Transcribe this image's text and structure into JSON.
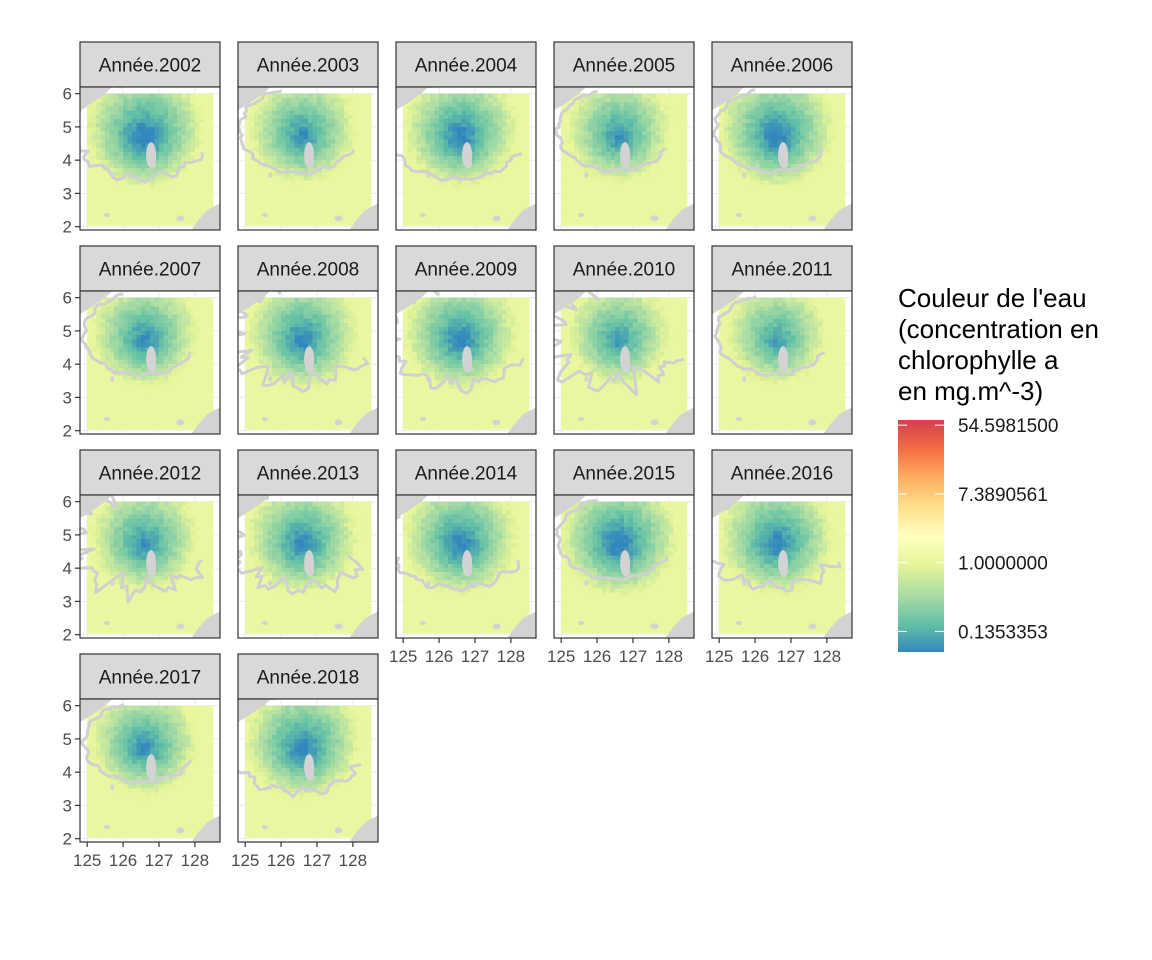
{
  "chart_data": {
    "type": "heatmap",
    "title": "",
    "xlabel": "",
    "ylabel": "",
    "xlim": [
      124.8,
      128.7
    ],
    "ylim": [
      1.9,
      6.2
    ],
    "x_ticks": [
      "125",
      "126",
      "127",
      "128"
    ],
    "x_tick_values": [
      125,
      126,
      127,
      128
    ],
    "y_ticks": [
      "2",
      "3",
      "4",
      "5",
      "6"
    ],
    "y_tick_values": [
      2,
      3,
      4,
      5,
      6
    ],
    "facets": [
      {
        "label": "Année.2002",
        "intensity": 0.62,
        "contour_level": 0.55,
        "contour_noise": 0.1
      },
      {
        "label": "Année.2003",
        "intensity": 0.5,
        "contour_level": 0.75,
        "contour_noise": 0.05
      },
      {
        "label": "Année.2004",
        "intensity": 0.58,
        "contour_level": 0.52,
        "contour_noise": 0.06
      },
      {
        "label": "Année.2005",
        "intensity": 0.48,
        "contour_level": 0.8,
        "contour_noise": 0.05
      },
      {
        "label": "Année.2006",
        "intensity": 0.6,
        "contour_level": 0.78,
        "contour_noise": 0.05
      },
      {
        "label": "Année.2007",
        "intensity": 0.5,
        "contour_level": 0.8,
        "contour_noise": 0.05
      },
      {
        "label": "Année.2008",
        "intensity": 0.55,
        "contour_level": 0.5,
        "contour_noise": 0.25
      },
      {
        "label": "Année.2009",
        "intensity": 0.57,
        "contour_level": 0.48,
        "contour_noise": 0.18
      },
      {
        "label": "Année.2010",
        "intensity": 0.45,
        "contour_level": 0.52,
        "contour_noise": 0.3
      },
      {
        "label": "Année.2011",
        "intensity": 0.42,
        "contour_level": 0.82,
        "contour_noise": 0.05
      },
      {
        "label": "Année.2012",
        "intensity": 0.5,
        "contour_level": 0.5,
        "contour_noise": 0.28
      },
      {
        "label": "Année.2013",
        "intensity": 0.55,
        "contour_level": 0.5,
        "contour_noise": 0.2
      },
      {
        "label": "Année.2014",
        "intensity": 0.58,
        "contour_level": 0.5,
        "contour_noise": 0.08
      },
      {
        "label": "Année.2015",
        "intensity": 0.62,
        "contour_level": 0.8,
        "contour_noise": 0.05
      },
      {
        "label": "Année.2016",
        "intensity": 0.58,
        "contour_level": 0.5,
        "contour_noise": 0.15
      },
      {
        "label": "Année.2017",
        "intensity": 0.5,
        "contour_level": 0.82,
        "contour_noise": 0.05
      },
      {
        "label": "Année.2018",
        "intensity": 0.58,
        "contour_level": 0.5,
        "contour_noise": 0.12
      }
    ],
    "legend": {
      "title": [
        "Couleur de l'eau",
        "(concentration en",
        "chlorophylle a",
        "en mg.m^-3)"
      ],
      "labels": [
        "54.5981500",
        "7.3890561",
        "1.0000000",
        "0.1353353"
      ],
      "values": [
        54.59815,
        7.3890561,
        1.0,
        0.1353353
      ],
      "colors": [
        "#d53e4f",
        "#f46d43",
        "#fdae61",
        "#fee08b",
        "#ffffbf",
        "#e6f598",
        "#abdda4",
        "#66c2a5",
        "#3288bd"
      ],
      "placement": "right"
    },
    "land_color": "#d3d3d3",
    "strip_color": "#d9d9d9",
    "panel_border_color": "#333333"
  }
}
